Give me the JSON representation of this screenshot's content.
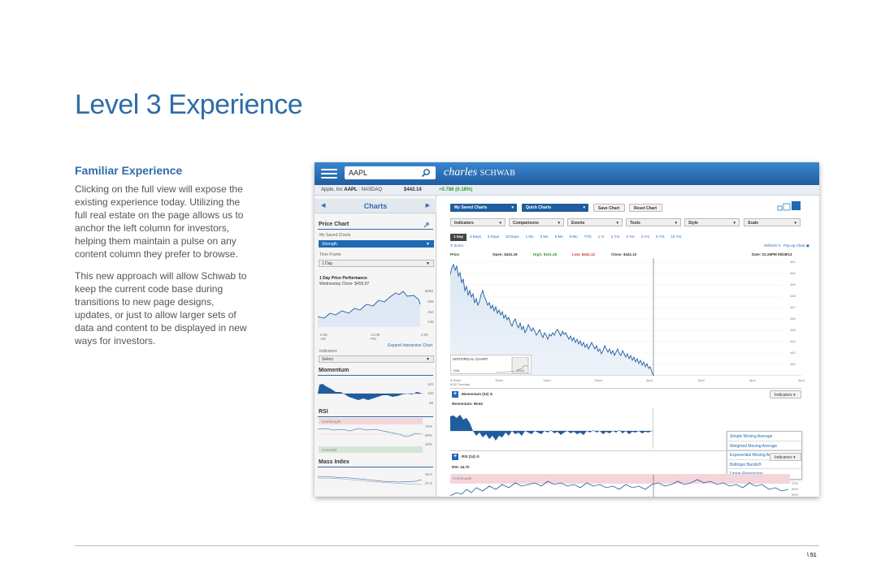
{
  "slide": {
    "title": "Level 3 Experience",
    "section_heading": "Familiar Experience",
    "paragraph1": "Clicking on the full view will expose the existing experience today. Utilizing the full real estate on the page allows us to anchor the left column for investors, helping them maintain a pulse on any content column they prefer to browse.",
    "paragraph2": "This new approach will allow Schwab to keep the current code base during transitions to new page designs, updates, or just to allow larger sets of data and content to be displayed in new ways for investors.",
    "page_number": "\\ 51"
  },
  "app": {
    "search_value": "AAPL",
    "logo_italic": "charles",
    "logo_caps": "SCHWAB",
    "quote": {
      "name_prefix": "Apple, Inc",
      "ticker": "AAPL",
      "exchange": ": NASDAQ",
      "price": "$442.14",
      "change": "+0.786 (0.18%)"
    },
    "left": {
      "header": "Charts",
      "price_chart_title": "Price Chart",
      "saved_charts_label": "My Saved Charts",
      "saved_charts_value": "Strength",
      "time_frame_label": "Time Frame",
      "time_frame_value": "1 Day",
      "perf_title": "1 Day Price Performance",
      "perf_subtitle": "Wednesday Close: $459.97",
      "mini_y_ticks": [
        "$460",
        "456",
        "452",
        "448"
      ],
      "mini_x_ticks": [
        "9:30\nAM",
        "12:00\nPM",
        "4:00"
      ],
      "expand_link": "Expand Interactive Chart",
      "indicators_label": "Indicators",
      "indicators_value": "Select",
      "momentum_title": "Momentum",
      "momentum_ticks": [
        "101",
        "100",
        "99"
      ],
      "rsi_title": "RSI",
      "overbought": "Overbought",
      "oversold": "Oversold",
      "rsi_ticks": [
        "70%",
        "50%",
        "30%"
      ],
      "mass_title": "Mass Index",
      "mass_ticks": [
        "30.0",
        "27.5"
      ]
    },
    "main": {
      "saved_charts_btn": "My Saved Charts",
      "quick_charts_btn": "Quick Charts",
      "save_chart_btn": "Save Chart",
      "reset_chart_btn": "Reset Chart",
      "dropdowns": [
        "Indicators",
        "Comparisons",
        "Events",
        "Tools",
        "Style",
        "Scale"
      ],
      "timeframes": [
        "1 Day",
        "3 Days",
        "5 Days",
        "10 Days",
        "1 Mo",
        "3 Mo",
        "6 Mo",
        "9 Mo",
        "YTD",
        "1 Yr",
        "2 Yrs",
        "3 Yrs",
        "4 Yrs",
        "5 Yrs",
        "10 Yrs"
      ],
      "zoom": "Zoom",
      "refresh": "Refresh",
      "popup": "Pop-up Chart",
      "ohlc_label": "Price",
      "open": "Open: $441.18",
      "high": "High: $441.48",
      "low": "Low: $441.12",
      "close": "Close: $441.12",
      "date": "Date: 01:25PM 05/28/13",
      "y_ticks": [
        "451",
        "450",
        "449",
        "448",
        "447",
        "446",
        "445",
        "444",
        "443",
        "442"
      ],
      "x_ticks": [
        "9:30am\n5/28 Tuesday",
        "10am",
        "11am",
        "12pm",
        "1pm",
        "2pm",
        "3pm",
        "4pm"
      ],
      "historical_label": "HISTORICAL CHART",
      "hist_years": [
        "1981",
        "2013"
      ],
      "momentum_panel": "Momentum (24)",
      "momentum_value": "Momentum: 98.62",
      "indicators_btn": "Indicators",
      "indicator_menu": [
        "Simple Moving Average",
        "Weighted Moving Average",
        "Exponential Moving Average",
        "Bollinger Bands®",
        "Linear Regression"
      ],
      "rsi_panel": "RSI (14)",
      "rsi_value": "RSI: 44.70",
      "overbought": "Overbought",
      "rsi_ticks": [
        "70%",
        "50%",
        "30%"
      ]
    }
  }
}
